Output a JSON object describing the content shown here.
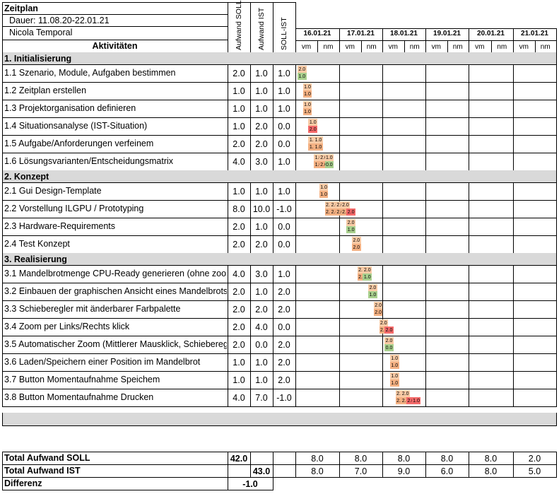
{
  "header": {
    "title": "Zeitplan",
    "duration": "Dauer: 11.08.20-22.01.21",
    "author": "Nicola Temporal",
    "activities_label": "Aktivitäten",
    "col_soll": "Aufwand SOLL",
    "col_ist": "Aufwand IST",
    "col_diff": "SOLL-IST"
  },
  "days": [
    "16.01.21",
    "17.01.21",
    "18.01.21",
    "19.01.21",
    "20.01.21",
    "21.01.21"
  ],
  "halfday_labels": [
    "vm",
    "nm"
  ],
  "rows": [
    {
      "type": "section",
      "label": "1. Initialisierung"
    },
    {
      "type": "task",
      "label": "1.1 Szenario, Module, Aufgaben bestimmen",
      "soll": "2.0",
      "ist": "1.0",
      "diff": "1.0",
      "bars": [
        {
          "slot": 0,
          "row": 0,
          "value": "2.0",
          "color": "#f9cba6"
        },
        {
          "slot": 0,
          "row": 1,
          "value": "1.0",
          "color": "#a9d08e"
        }
      ]
    },
    {
      "type": "task",
      "label": "1.2 Zeitplan erstellen",
      "soll": "1.0",
      "ist": "1.0",
      "diff": "1.0",
      "bars": [
        {
          "slot": 1,
          "row": 0,
          "value": "1.0",
          "color": "#f9cba6"
        },
        {
          "slot": 1,
          "row": 1,
          "value": "1.0",
          "color": "#f4b183"
        }
      ]
    },
    {
      "type": "task",
      "label": "1.3 Projektorganisation definieren",
      "soll": "1.0",
      "ist": "1.0",
      "diff": "1.0",
      "bars": [
        {
          "slot": 1,
          "row": 0,
          "value": "1.0",
          "color": "#f9cba6"
        },
        {
          "slot": 1,
          "row": 1,
          "value": "1.0",
          "color": "#f4b183"
        }
      ]
    },
    {
      "type": "task",
      "label": "1.4 Situationsanalyse (IST-Situation)",
      "soll": "1.0",
      "ist": "2.0",
      "diff": "0.0",
      "bars": [
        {
          "slot": 2,
          "row": 0,
          "value": "1.0",
          "color": "#f9cba6"
        },
        {
          "slot": 2,
          "row": 1,
          "value": "2.0",
          "color": "#f46a6a"
        }
      ]
    },
    {
      "type": "task",
      "label": "1.5 Aufgabe/Anforderungen verfeinem",
      "soll": "2.0",
      "ist": "2.0",
      "diff": "0.0",
      "bars": [
        {
          "slot": 2,
          "row": 0,
          "value": "1.0",
          "color": "#f9cba6"
        },
        {
          "slot": 3,
          "row": 0,
          "value": "1.0",
          "color": "#f9cba6"
        },
        {
          "slot": 2,
          "row": 1,
          "value": "1.0",
          "color": "#f4b183"
        },
        {
          "slot": 3,
          "row": 1,
          "value": "1.0",
          "color": "#f4b183"
        }
      ]
    },
    {
      "type": "task",
      "label": "1.6 Lösungsvarianten/Entscheidungsmatrix",
      "soll": "4.0",
      "ist": "3.0",
      "diff": "1.0",
      "bars": [
        {
          "slot": 3,
          "row": 0,
          "value": "1.0",
          "color": "#f9cba6"
        },
        {
          "slot": 4,
          "row": 0,
          "value": "2.0",
          "color": "#f9cba6"
        },
        {
          "slot": 5,
          "row": 0,
          "value": "1.0",
          "color": "#f9cba6"
        },
        {
          "slot": 3,
          "row": 1,
          "value": "1.0",
          "color": "#f4b183"
        },
        {
          "slot": 4,
          "row": 1,
          "value": "2.0",
          "color": "#f4b183"
        },
        {
          "slot": 5,
          "row": 1,
          "value": "0.0",
          "color": "#a9d08e"
        }
      ]
    },
    {
      "type": "section",
      "label": "2. Konzept"
    },
    {
      "type": "task",
      "label": "2.1 Gui Design-Template",
      "soll": "1.0",
      "ist": "1.0",
      "diff": "1.0",
      "bars": [
        {
          "slot": 4,
          "row": 0,
          "value": "1.0",
          "color": "#f9cba6"
        },
        {
          "slot": 4,
          "row": 1,
          "value": "1.0",
          "color": "#f4b183"
        }
      ]
    },
    {
      "type": "task",
      "label": "2.2 Vorstellung ILGPU / Prototyping",
      "soll": "8.0",
      "ist": "10.0",
      "diff": "-1.0",
      "bars": [
        {
          "slot": 5,
          "row": 0,
          "value": "2.0",
          "color": "#f9cba6"
        },
        {
          "slot": 6,
          "row": 0,
          "value": "2.0",
          "color": "#f9cba6"
        },
        {
          "slot": 7,
          "row": 0,
          "value": "2.0",
          "color": "#f9cba6"
        },
        {
          "slot": 8,
          "row": 0,
          "value": "2.0",
          "color": "#f9cba6"
        },
        {
          "slot": 5,
          "row": 1,
          "value": "2.0",
          "color": "#f4b183"
        },
        {
          "slot": 6,
          "row": 1,
          "value": "2.0",
          "color": "#f4b183"
        },
        {
          "slot": 7,
          "row": 1,
          "value": "2.0",
          "color": "#f4b183"
        },
        {
          "slot": 8,
          "row": 1,
          "value": "2.0",
          "color": "#f4b183"
        },
        {
          "slot": 9,
          "row": 1,
          "value": "2.0",
          "color": "#f46a6a"
        }
      ]
    },
    {
      "type": "task",
      "label": "2.3 Hardware-Requirements",
      "soll": "2.0",
      "ist": "1.0",
      "diff": "0.0",
      "bars": [
        {
          "slot": 9,
          "row": 0,
          "value": "2.0",
          "color": "#f9cba6"
        },
        {
          "slot": 9,
          "row": 1,
          "value": "1.0",
          "color": "#a9d08e"
        }
      ]
    },
    {
      "type": "task",
      "label": "2.4 Test Konzept",
      "soll": "2.0",
      "ist": "2.0",
      "diff": "0.0",
      "bars": [
        {
          "slot": 10,
          "row": 0,
          "value": "2.0",
          "color": "#f9cba6"
        },
        {
          "slot": 10,
          "row": 1,
          "value": "2.0",
          "color": "#f4b183"
        }
      ]
    },
    {
      "type": "section",
      "label": "3. Realisierung"
    },
    {
      "type": "task",
      "label": "3.1 Mandelbrotmenge CPU-Ready generieren (ohne zoom)",
      "soll": "4.0",
      "ist": "3.0",
      "diff": "1.0",
      "bars": [
        {
          "slot": 11,
          "row": 0,
          "value": "2.0",
          "color": "#f9cba6"
        },
        {
          "slot": 12,
          "row": 0,
          "value": "2.0",
          "color": "#f9cba6"
        },
        {
          "slot": 11,
          "row": 1,
          "value": "2.0",
          "color": "#f4b183"
        },
        {
          "slot": 12,
          "row": 1,
          "value": "1.0",
          "color": "#a9d08e"
        }
      ]
    },
    {
      "type": "task",
      "label": "3.2 Einbauen der graphischen Ansicht eines Mandelbrots",
      "soll": "2.0",
      "ist": "1.0",
      "diff": "2.0",
      "bars": [
        {
          "slot": 13,
          "row": 0,
          "value": "2.0",
          "color": "#f9cba6"
        },
        {
          "slot": 13,
          "row": 1,
          "value": "1.0",
          "color": "#a9d08e"
        }
      ]
    },
    {
      "type": "task",
      "label": "3.3 Schieberegler mit änderbarer Farbpalette",
      "soll": "2.0",
      "ist": "2.0",
      "diff": "2.0",
      "bars": [
        {
          "slot": 14,
          "row": 0,
          "value": "2.0",
          "color": "#f9cba6"
        },
        {
          "slot": 14,
          "row": 1,
          "value": "2.0",
          "color": "#f4b183"
        }
      ]
    },
    {
      "type": "task",
      "label": "3.4 Zoom per Links/Rechts klick",
      "soll": "2.0",
      "ist": "4.0",
      "diff": "0.0",
      "bars": [
        {
          "slot": 15,
          "row": 0,
          "value": "2.0",
          "color": "#f9cba6"
        },
        {
          "slot": 15,
          "row": 1,
          "value": "2.0",
          "color": "#f4b183"
        },
        {
          "slot": 16,
          "row": 1,
          "value": "2.0",
          "color": "#f46a6a"
        }
      ]
    },
    {
      "type": "task",
      "label": "3.5 Automatischer Zoom (Mittlerer Mausklick, Schieberegler)",
      "soll": "2.0",
      "ist": "0.0",
      "diff": "2.0",
      "bars": [
        {
          "slot": 16,
          "row": 0,
          "value": "2.0",
          "color": "#f9cba6"
        },
        {
          "slot": 16,
          "row": 1,
          "value": "0.0",
          "color": "#a9d08e"
        }
      ]
    },
    {
      "type": "task",
      "label": "3.6 Laden/Speichern einer Position im Mandelbrot",
      "soll": "1.0",
      "ist": "1.0",
      "diff": "2.0",
      "bars": [
        {
          "slot": 17,
          "row": 0,
          "value": "1.0",
          "color": "#f9cba6"
        },
        {
          "slot": 17,
          "row": 1,
          "value": "1.0",
          "color": "#f4b183"
        }
      ]
    },
    {
      "type": "task",
      "label": "3.7 Button Momentaufnahme Speichem",
      "soll": "1.0",
      "ist": "1.0",
      "diff": "2.0",
      "bars": [
        {
          "slot": 17,
          "row": 0,
          "value": "1.0",
          "color": "#f9cba6"
        },
        {
          "slot": 17,
          "row": 1,
          "value": "1.0",
          "color": "#f4b183"
        }
      ]
    },
    {
      "type": "task",
      "label": "3.8 Button Momentaufnahme Drucken",
      "soll": "4.0",
      "ist": "7.0",
      "diff": "-1.0",
      "bars": [
        {
          "slot": 18,
          "row": 0,
          "value": "2.0",
          "color": "#f9cba6"
        },
        {
          "slot": 19,
          "row": 0,
          "value": "2.0",
          "color": "#f9cba6"
        },
        {
          "slot": 18,
          "row": 1,
          "value": "2.0",
          "color": "#f4b183"
        },
        {
          "slot": 19,
          "row": 1,
          "value": "2.0",
          "color": "#f4b183"
        },
        {
          "slot": 20,
          "row": 1,
          "value": "2.0",
          "color": "#f46a6a"
        },
        {
          "slot": 21,
          "row": 1,
          "value": "1.0",
          "color": "#f46a6a"
        }
      ]
    }
  ],
  "totals": {
    "soll_label": "Total Aufwand SOLL",
    "soll_total": "42.0",
    "soll_days": [
      "8.0",
      "8.0",
      "8.0",
      "8.0",
      "8.0",
      "2.0"
    ],
    "ist_label": "Total Aufwand IST",
    "ist_total": "43.0",
    "ist_days": [
      "8.0",
      "7.0",
      "9.0",
      "6.0",
      "8.0",
      "5.0"
    ],
    "diff_label": "Differenz",
    "diff_total": "-1.0"
  },
  "colors": {
    "section_bg": "#d9d9d9",
    "footer_band_bg": "#d9d9d9",
    "bar_soll": "#f9cba6",
    "bar_ist": "#f4b183",
    "bar_under": "#a9d08e",
    "bar_over": "#f46a6a"
  }
}
